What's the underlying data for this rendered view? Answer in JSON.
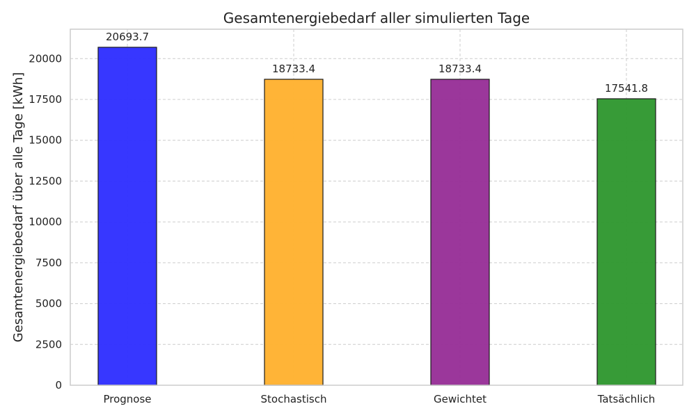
{
  "chart_data": {
    "type": "bar",
    "title": "Gesamtenergiebedarf aller simulierten Tage",
    "xlabel": "",
    "ylabel": "Gesamtenergiebedarf über alle Tage [kWh]",
    "categories": [
      "Prognose",
      "Stochastisch",
      "Gewichtet",
      "Tatsächlich"
    ],
    "values": [
      20693.7,
      18733.4,
      18733.4,
      17541.8
    ],
    "value_labels": [
      "20693.7",
      "18733.4",
      "18733.4",
      "17541.8"
    ],
    "colors": [
      "#3333ff",
      "#ffb333",
      "#993399",
      "#339933"
    ],
    "ylim": [
      0,
      21800
    ],
    "yticks": [
      0,
      2500,
      5000,
      7500,
      10000,
      12500,
      15000,
      17500,
      20000
    ],
    "grid": true,
    "legend": "none"
  }
}
